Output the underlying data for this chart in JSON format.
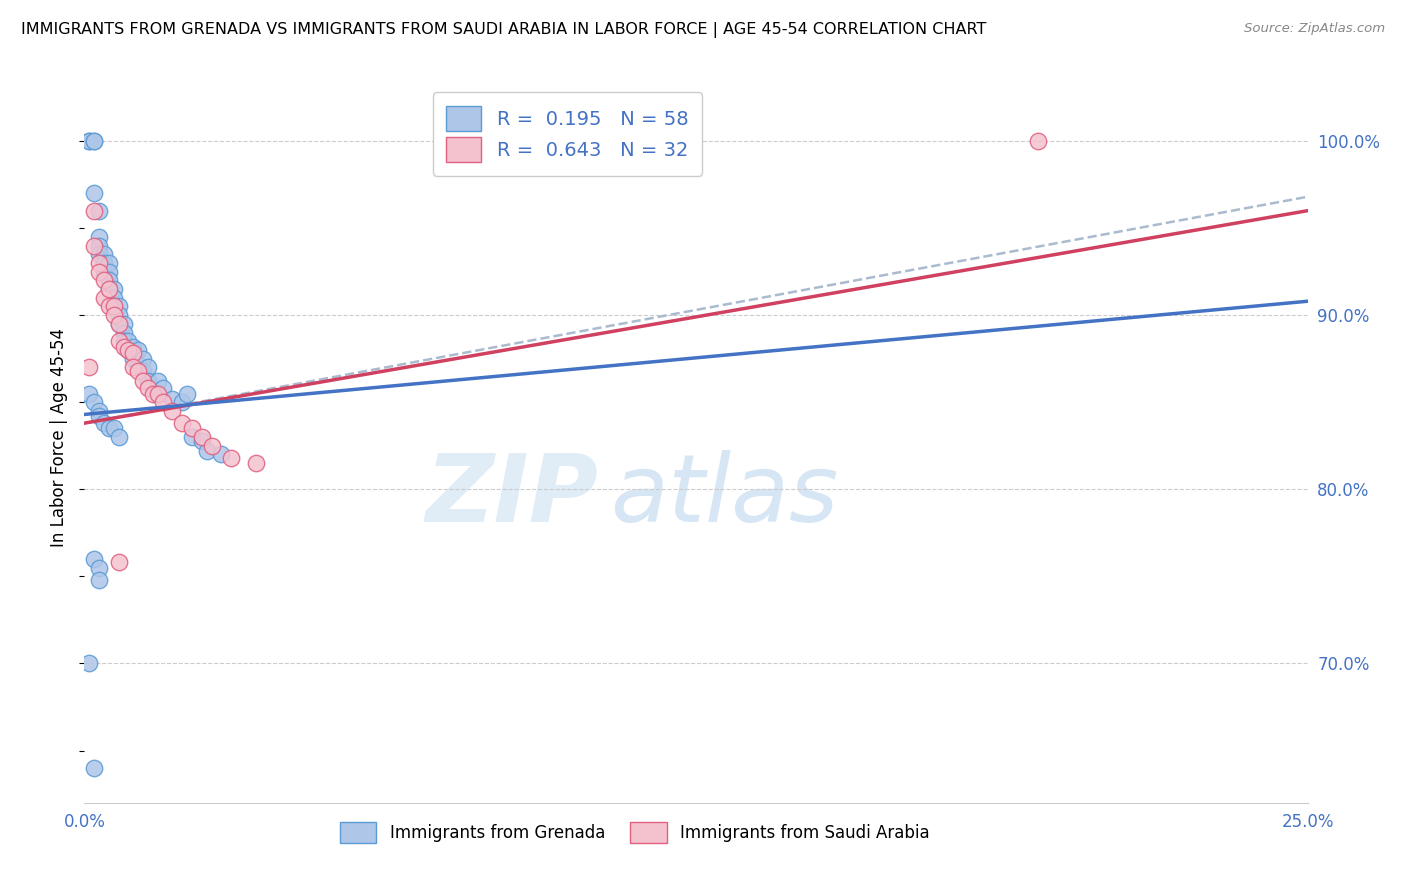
{
  "title": "IMMIGRANTS FROM GRENADA VS IMMIGRANTS FROM SAUDI ARABIA IN LABOR FORCE | AGE 45-54 CORRELATION CHART",
  "source": "Source: ZipAtlas.com",
  "ylabel": "In Labor Force | Age 45-54",
  "xlim": [
    0.0,
    0.25
  ],
  "ylim": [
    0.62,
    1.04
  ],
  "r_grenada": 0.195,
  "n_grenada": 58,
  "r_saudi": 0.643,
  "n_saudi": 32,
  "color_grenada_fill": "#aec6e8",
  "color_grenada_edge": "#5b9bd5",
  "color_saudi_fill": "#f4c2cf",
  "color_saudi_edge": "#e06080",
  "color_grenada_line": "#4472c4",
  "color_saudi_line": "#d04060",
  "color_dashed_line": "#aabbd0",
  "axis_label_color": "#4472c4",
  "watermark_zip": "ZIP",
  "watermark_atlas": "atlas",
  "title_fontsize": 11.5,
  "yticks": [
    0.7,
    0.8,
    0.9,
    1.0
  ],
  "ytick_labels": [
    "70.0%",
    "80.0%",
    "90.0%",
    "100.0%"
  ],
  "xtick_vals": [
    0.0,
    0.05,
    0.1,
    0.15,
    0.2,
    0.25
  ],
  "xtick_labels": [
    "0.0%",
    "",
    "",
    "",
    "",
    "25.0%"
  ],
  "grenada_x": [
    0.001,
    0.001,
    0.002,
    0.002,
    0.002,
    0.003,
    0.003,
    0.003,
    0.003,
    0.004,
    0.004,
    0.004,
    0.005,
    0.005,
    0.005,
    0.005,
    0.006,
    0.006,
    0.006,
    0.007,
    0.007,
    0.007,
    0.008,
    0.008,
    0.008,
    0.009,
    0.009,
    0.01,
    0.01,
    0.011,
    0.011,
    0.012,
    0.012,
    0.013,
    0.013,
    0.015,
    0.015,
    0.016,
    0.018,
    0.02,
    0.021,
    0.022,
    0.024,
    0.025,
    0.028,
    0.001,
    0.002,
    0.003,
    0.003,
    0.004,
    0.005,
    0.006,
    0.007,
    0.002,
    0.003,
    0.003,
    0.001,
    0.002
  ],
  "grenada_y": [
    1.0,
    1.0,
    1.0,
    1.0,
    0.97,
    0.96,
    0.945,
    0.94,
    0.935,
    0.935,
    0.93,
    0.925,
    0.93,
    0.925,
    0.92,
    0.915,
    0.915,
    0.91,
    0.905,
    0.905,
    0.9,
    0.895,
    0.895,
    0.89,
    0.885,
    0.885,
    0.88,
    0.882,
    0.875,
    0.88,
    0.872,
    0.875,
    0.868,
    0.87,
    0.862,
    0.862,
    0.855,
    0.858,
    0.852,
    0.85,
    0.855,
    0.83,
    0.828,
    0.822,
    0.82,
    0.855,
    0.85,
    0.845,
    0.842,
    0.838,
    0.835,
    0.835,
    0.83,
    0.76,
    0.755,
    0.748,
    0.7,
    0.64
  ],
  "saudi_x": [
    0.001,
    0.002,
    0.002,
    0.003,
    0.003,
    0.004,
    0.004,
    0.005,
    0.005,
    0.006,
    0.006,
    0.007,
    0.007,
    0.008,
    0.009,
    0.01,
    0.01,
    0.011,
    0.012,
    0.013,
    0.014,
    0.015,
    0.016,
    0.018,
    0.02,
    0.022,
    0.024,
    0.026,
    0.03,
    0.035,
    0.195,
    0.007
  ],
  "saudi_y": [
    0.87,
    0.96,
    0.94,
    0.93,
    0.925,
    0.92,
    0.91,
    0.915,
    0.905,
    0.905,
    0.9,
    0.895,
    0.885,
    0.882,
    0.88,
    0.878,
    0.87,
    0.868,
    0.862,
    0.858,
    0.855,
    0.855,
    0.85,
    0.845,
    0.838,
    0.835,
    0.83,
    0.825,
    0.818,
    0.815,
    1.0,
    0.758
  ],
  "line_grenada": {
    "x0": 0.0,
    "x1": 0.25,
    "y0": 0.843,
    "y1": 0.908
  },
  "line_saudi": {
    "x0": 0.0,
    "x1": 0.25,
    "y0": 0.838,
    "y1": 0.96
  },
  "line_dashed": {
    "x0": 0.0,
    "x1": 0.25,
    "y0": 0.838,
    "y1": 0.968
  }
}
